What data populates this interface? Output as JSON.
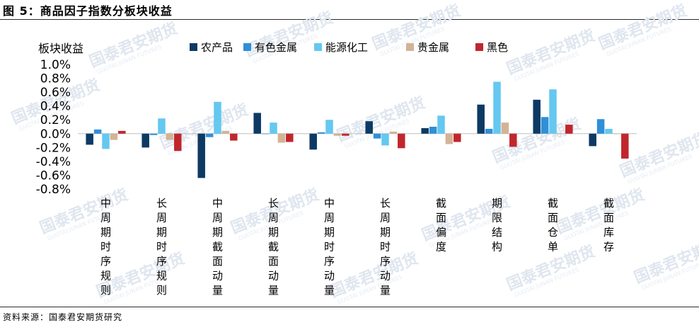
{
  "figure": {
    "title": "图 5：商品因子指数分板块收益",
    "source": "资料来源：国泰君安期货研究",
    "watermark": "国泰君安期货",
    "watermark_sub": "GUOTAI JUNAN FUTURES"
  },
  "chart_data": {
    "type": "bar",
    "ylabel": "板块收益",
    "ylim": [
      -0.008,
      0.01
    ],
    "yticks": [
      0.01,
      0.008,
      0.006,
      0.004,
      0.002,
      0.0,
      -0.002,
      -0.004,
      -0.006,
      -0.008
    ],
    "ytick_labels": [
      "1.0%",
      "0.8%",
      "0.6%",
      "0.4%",
      "0.2%",
      "0.0%",
      "-0.2%",
      "-0.4%",
      "-0.6%",
      "-0.8%"
    ],
    "categories": [
      "中周期时序规则",
      "长周期时序规则",
      "中周期截面动量",
      "长周期截面动量",
      "中周期时序动量",
      "长周期时序动量",
      "截面偏度",
      "期限结构",
      "截面仓单",
      "截面库存"
    ],
    "series": [
      {
        "name": "农产品",
        "color": "#0d3a63",
        "values": [
          -0.0016,
          -0.002,
          -0.0064,
          0.003,
          -0.0023,
          0.0018,
          0.0008,
          0.0042,
          0.0049,
          -0.0018
        ]
      },
      {
        "name": "有色金属",
        "color": "#2f8fd8",
        "values": [
          0.0006,
          -0.0002,
          -0.0005,
          0.0,
          0.0002,
          -0.0007,
          0.001,
          0.0007,
          0.0024,
          0.0021
        ]
      },
      {
        "name": "能源化工",
        "color": "#64c8f0",
        "values": [
          -0.0022,
          0.0022,
          0.0046,
          0.0016,
          0.002,
          -0.0017,
          0.0026,
          0.0075,
          0.0064,
          0.0007
        ]
      },
      {
        "name": "贵金属",
        "color": "#d3b395",
        "values": [
          -0.0009,
          -0.0009,
          0.0004,
          -0.0013,
          -0.0003,
          0.0003,
          -0.0015,
          0.0016,
          0.0,
          0.0
        ]
      },
      {
        "name": "黑色",
        "color": "#c0272d",
        "values": [
          0.0004,
          -0.0025,
          -0.001,
          -0.0012,
          -0.0003,
          -0.0021,
          -0.0012,
          -0.0019,
          0.0013,
          -0.0036
        ]
      }
    ],
    "grid": false,
    "legend_position": "top"
  }
}
